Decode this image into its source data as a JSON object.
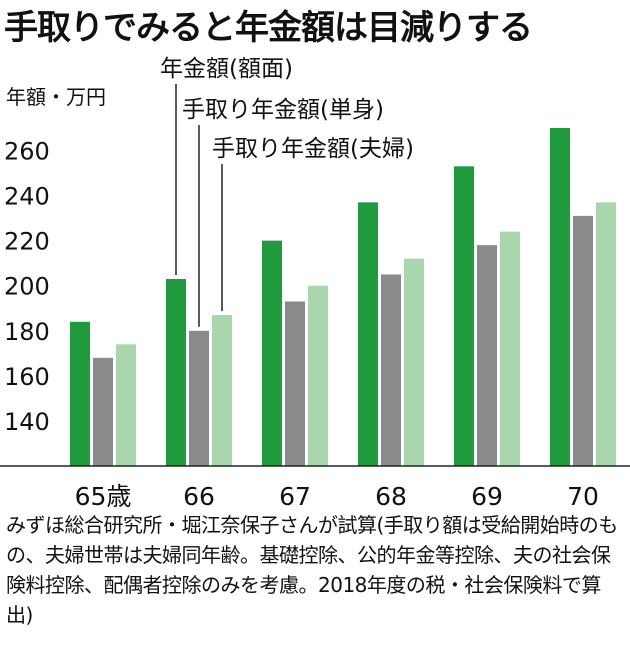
{
  "title": "手取りでみると年金額は目減りする",
  "chart_data": {
    "type": "bar",
    "ylabel": "年額・万円",
    "ylim": [
      120,
      270
    ],
    "yticks": [
      140,
      160,
      180,
      200,
      220,
      240,
      260
    ],
    "categories": [
      "65歳",
      "66",
      "67",
      "68",
      "69",
      "70"
    ],
    "series": [
      {
        "name": "年金額(額面)",
        "color": "#1f9a3c",
        "values": [
          184,
          203,
          220,
          237,
          253,
          270
        ]
      },
      {
        "name": "手取り年金額(単身)",
        "color": "#8a8a8a",
        "values": [
          168,
          180,
          193,
          205,
          218,
          231
        ]
      },
      {
        "name": "手取り年金額(夫婦)",
        "color": "#a9d6ad",
        "values": [
          174,
          187,
          200,
          212,
          224,
          237
        ]
      }
    ]
  },
  "note": "みずほ総合研究所・堀江奈保子さんが試算(手取り額は受給開始時のもの、夫婦世帯は夫婦同年齢。基礎控除、公的年金等控除、夫の社会保険料控除、配偶者控除のみを考慮。2018年度の税・社会保険料で算出)"
}
